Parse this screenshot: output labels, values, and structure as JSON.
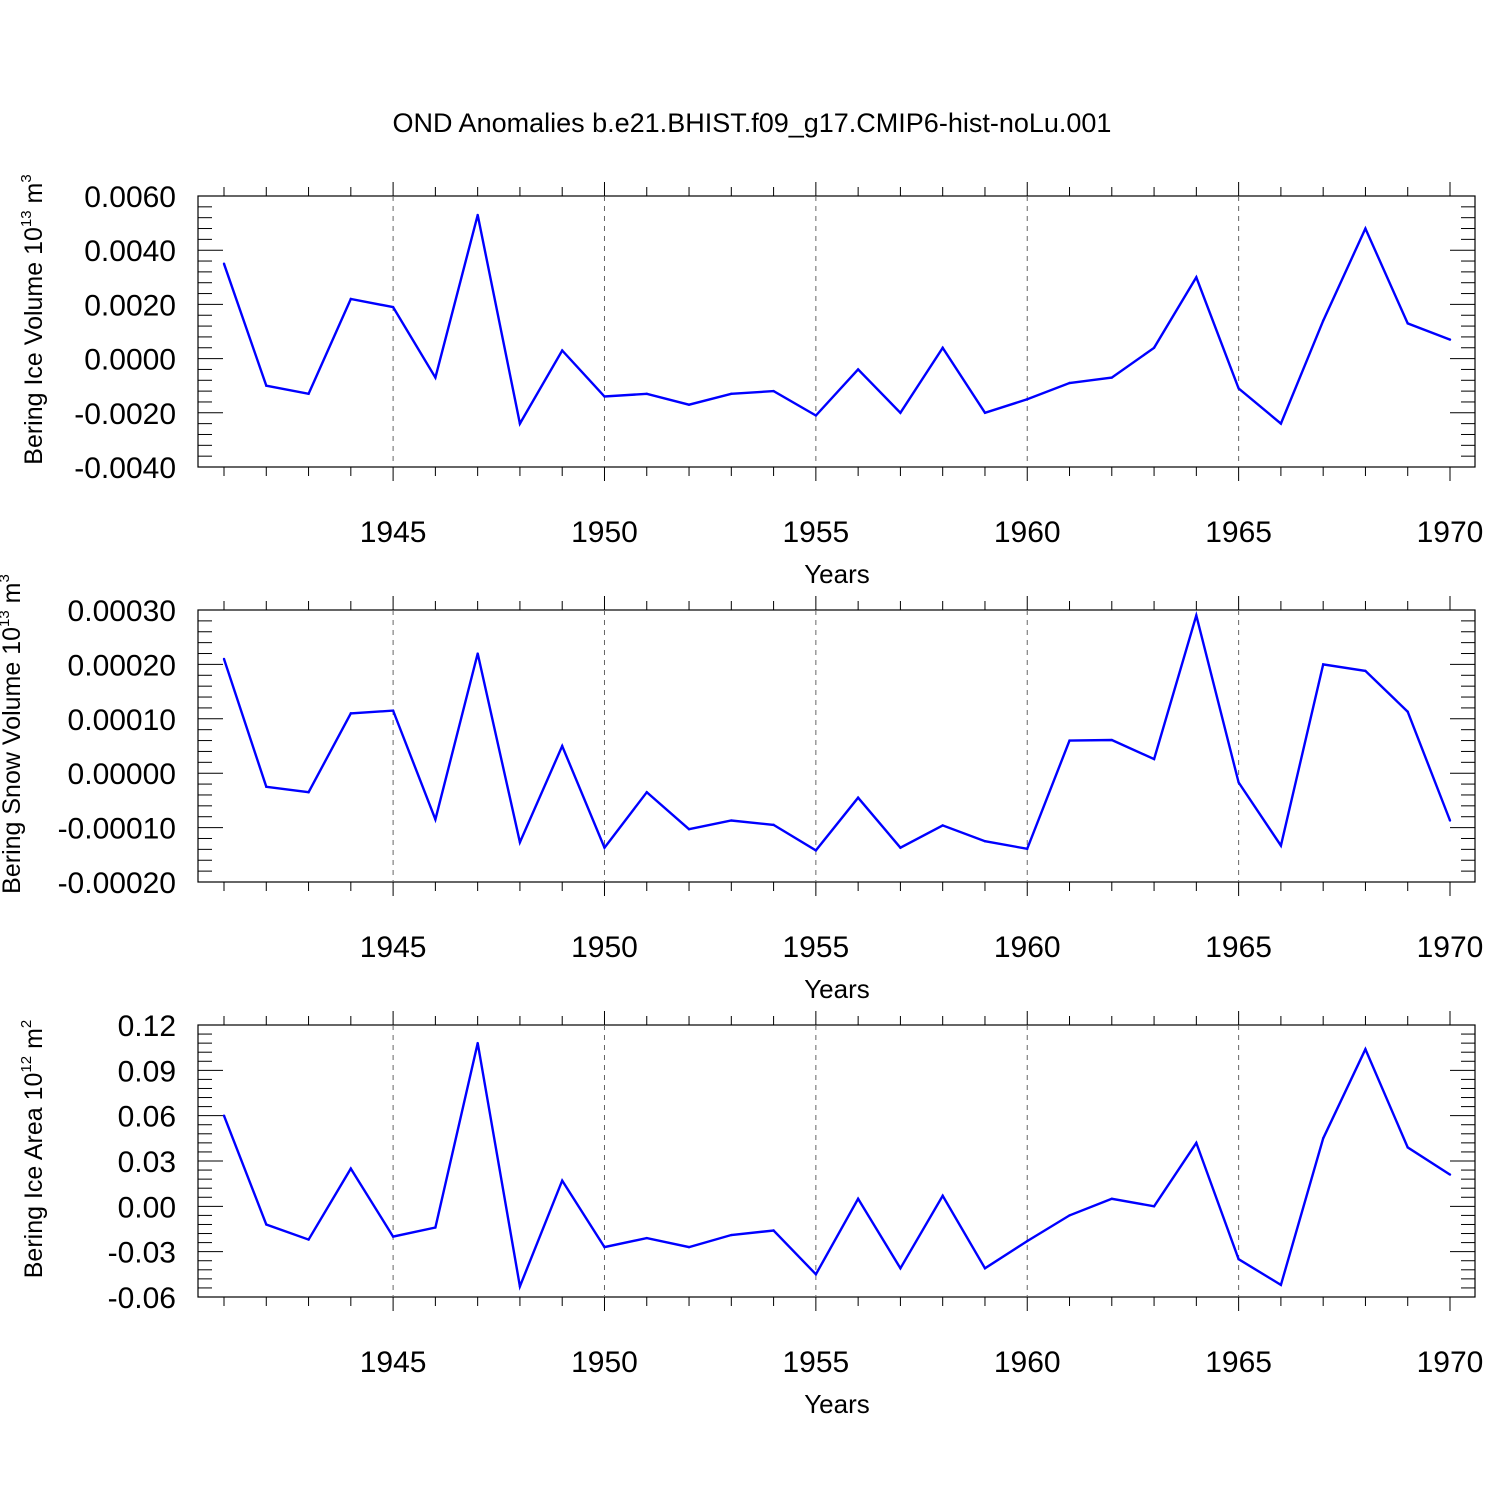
{
  "chart_data": [
    {
      "type": "line",
      "title": "OND Anomalies b.e21.BHIST.f09_g17.CMIP6-hist-noLu.001",
      "xlabel": "Years",
      "ylabel": "Bering Ice Volume 10",
      "ylabel_exp": "13",
      "ylabel_unit": " m",
      "ylabel_unit_exp": "3",
      "xlim": [
        1941,
        1970
      ],
      "ylim": [
        -0.004,
        0.006
      ],
      "yticks": [
        -0.004,
        -0.002,
        0.0,
        0.002,
        0.004,
        0.006
      ],
      "ytick_labels": [
        "-0.0040",
        "-0.0020",
        "0.0000",
        "0.0020",
        "0.0040",
        "0.0060"
      ],
      "xtick_labels": [
        "1945",
        "1950",
        "1955",
        "1960",
        "1965",
        "1970"
      ],
      "line_color": "#0000ff",
      "x": [
        1941,
        1942,
        1943,
        1944,
        1945,
        1946,
        1947,
        1948,
        1949,
        1950,
        1951,
        1952,
        1953,
        1954,
        1955,
        1956,
        1957,
        1958,
        1959,
        1960,
        1961,
        1962,
        1963,
        1964,
        1965,
        1966,
        1967,
        1968,
        1969,
        1970
      ],
      "values": [
        0.0035,
        -0.001,
        -0.0013,
        0.0022,
        0.0019,
        -0.0007,
        0.0053,
        -0.0024,
        0.0003,
        -0.0014,
        -0.0013,
        -0.0017,
        -0.0013,
        -0.0012,
        -0.0021,
        -0.0004,
        -0.002,
        0.0004,
        -0.002,
        -0.0015,
        -0.0009,
        -0.0007,
        0.0004,
        0.003,
        -0.0011,
        -0.0024,
        0.0014,
        0.0048,
        0.0013,
        0.0007
      ]
    },
    {
      "type": "line",
      "xlabel": "Years",
      "ylabel": "Bering Snow Volume 10",
      "ylabel_exp": "13",
      "ylabel_unit": " m",
      "ylabel_unit_exp": "3",
      "xlim": [
        1941,
        1970
      ],
      "ylim": [
        -0.0002,
        0.0003
      ],
      "yticks": [
        -0.0002,
        -0.0001,
        0.0,
        0.0001,
        0.0002,
        0.0003
      ],
      "ytick_labels": [
        "-0.00020",
        "-0.00010",
        "0.00000",
        "0.00010",
        "0.00020",
        "0.00030"
      ],
      "xtick_labels": [
        "1945",
        "1950",
        "1955",
        "1960",
        "1965",
        "1970"
      ],
      "line_color": "#0000ff",
      "x": [
        1941,
        1942,
        1943,
        1944,
        1945,
        1946,
        1947,
        1948,
        1949,
        1950,
        1951,
        1952,
        1953,
        1954,
        1955,
        1956,
        1957,
        1958,
        1959,
        1960,
        1961,
        1962,
        1963,
        1964,
        1965,
        1966,
        1967,
        1968,
        1969,
        1970
      ],
      "values": [
        0.00021,
        -2.5e-05,
        -3.5e-05,
        0.00011,
        0.000115,
        -8.5e-05,
        0.00022,
        -0.000127,
        5e-05,
        -0.000137,
        -3.5e-05,
        -0.000103,
        -8.7e-05,
        -9.5e-05,
        -0.000142,
        -4.5e-05,
        -0.000137,
        -9.6e-05,
        -0.000125,
        -0.000139,
        6e-05,
        6.1e-05,
        2.6e-05,
        0.00029,
        -1.7e-05,
        -0.000133,
        0.0002,
        0.000188,
        0.000113,
        -8.7e-05
      ]
    },
    {
      "type": "line",
      "xlabel": "Years",
      "ylabel": "Bering Ice Area 10",
      "ylabel_exp": "12",
      "ylabel_unit": " m",
      "ylabel_unit_exp": "2",
      "xlim": [
        1941,
        1970
      ],
      "ylim": [
        -0.06,
        0.12
      ],
      "yticks": [
        -0.06,
        -0.03,
        0.0,
        0.03,
        0.06,
        0.09,
        0.12
      ],
      "ytick_labels": [
        "-0.06",
        "-0.03",
        "0.00",
        "0.03",
        "0.06",
        "0.09",
        "0.12"
      ],
      "xtick_labels": [
        "1945",
        "1950",
        "1955",
        "1960",
        "1965",
        "1970"
      ],
      "line_color": "#0000ff",
      "x": [
        1941,
        1942,
        1943,
        1944,
        1945,
        1946,
        1947,
        1948,
        1949,
        1950,
        1951,
        1952,
        1953,
        1954,
        1955,
        1956,
        1957,
        1958,
        1959,
        1960,
        1961,
        1962,
        1963,
        1964,
        1965,
        1966,
        1967,
        1968,
        1969,
        1970
      ],
      "values": [
        0.06,
        -0.012,
        -0.022,
        0.025,
        -0.02,
        -0.014,
        0.108,
        -0.053,
        0.017,
        -0.027,
        -0.021,
        -0.027,
        -0.019,
        -0.016,
        -0.045,
        0.005,
        -0.041,
        0.007,
        -0.041,
        -0.023,
        -0.006,
        0.005,
        0.0,
        0.042,
        -0.035,
        -0.052,
        0.045,
        0.104,
        0.039,
        0.021
      ]
    }
  ]
}
